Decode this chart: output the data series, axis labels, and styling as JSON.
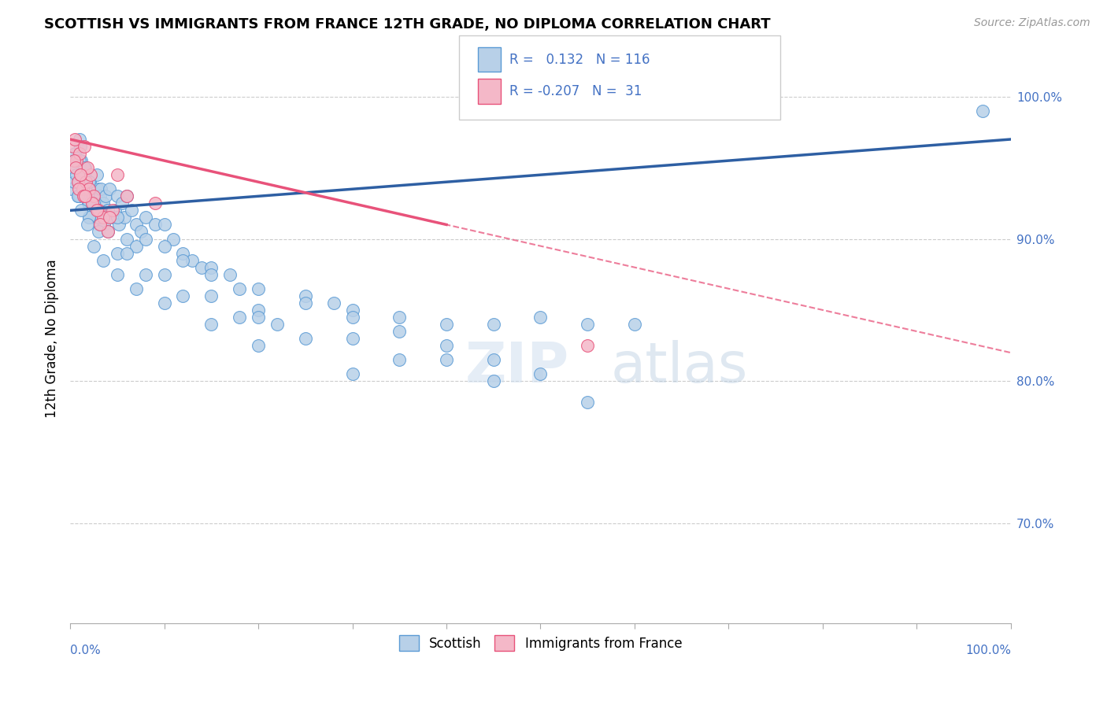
{
  "title": "SCOTTISH VS IMMIGRANTS FROM FRANCE 12TH GRADE, NO DIPLOMA CORRELATION CHART",
  "source": "Source: ZipAtlas.com",
  "ylabel": "12th Grade, No Diploma",
  "watermark_zip": "ZIP",
  "watermark_atlas": "atlas",
  "R_scottish": 0.132,
  "N_scottish": 116,
  "R_france": -0.207,
  "N_france": 31,
  "color_scottish": "#b8d0e8",
  "color_scottish_edge": "#5b9bd5",
  "color_france": "#f4b8c8",
  "color_france_edge": "#e8527a",
  "color_scottish_line": "#2e5fa3",
  "color_france_line": "#e8527a",
  "ylim": [
    63,
    103
  ],
  "xlim": [
    0,
    100
  ],
  "scottish_x": [
    0.2,
    0.3,
    0.4,
    0.5,
    0.6,
    0.7,
    0.8,
    0.9,
    1.0,
    1.1,
    1.2,
    1.3,
    1.4,
    1.5,
    1.6,
    1.7,
    1.8,
    1.9,
    2.0,
    2.1,
    2.2,
    2.3,
    2.4,
    2.5,
    2.6,
    2.7,
    2.8,
    2.9,
    3.0,
    3.1,
    3.2,
    3.3,
    3.5,
    3.6,
    3.8,
    4.0,
    4.2,
    4.5,
    4.8,
    5.0,
    5.2,
    5.5,
    5.8,
    6.0,
    6.5,
    7.0,
    7.5,
    8.0,
    9.0,
    10.0,
    11.0,
    12.0,
    13.0,
    14.0,
    15.0,
    17.0,
    18.0,
    20.0,
    22.0,
    25.0,
    28.0,
    30.0,
    35.0,
    40.0,
    45.0,
    50.0,
    55.0,
    60.0,
    0.5,
    1.0,
    1.5,
    2.0,
    2.5,
    3.0,
    4.0,
    5.0,
    6.0,
    7.0,
    8.0,
    10.0,
    12.0,
    15.0,
    20.0,
    25.0,
    30.0,
    35.0,
    40.0,
    45.0,
    50.0,
    2.0,
    3.0,
    5.0,
    8.0,
    12.0,
    18.0,
    25.0,
    35.0,
    45.0,
    55.0,
    1.0,
    2.0,
    4.0,
    6.0,
    10.0,
    15.0,
    20.0,
    30.0,
    40.0,
    0.8,
    1.2,
    1.8,
    2.5,
    3.5,
    5.0,
    7.0,
    10.0,
    15.0,
    20.0,
    30.0,
    97.0
  ],
  "scottish_y": [
    93.5,
    95.0,
    94.0,
    96.0,
    95.5,
    94.5,
    93.0,
    94.0,
    97.0,
    96.5,
    95.5,
    94.5,
    93.5,
    94.5,
    95.0,
    94.0,
    93.5,
    92.5,
    92.5,
    94.0,
    93.5,
    92.5,
    93.0,
    91.5,
    92.5,
    92.0,
    94.5,
    93.5,
    92.0,
    91.0,
    93.0,
    93.5,
    92.5,
    91.0,
    93.0,
    92.0,
    93.5,
    91.5,
    92.0,
    93.0,
    91.0,
    92.5,
    91.5,
    93.0,
    92.0,
    91.0,
    90.5,
    91.5,
    91.0,
    91.0,
    90.0,
    89.0,
    88.5,
    88.0,
    88.0,
    87.5,
    86.5,
    85.0,
    84.0,
    86.0,
    85.5,
    85.0,
    84.5,
    84.0,
    84.0,
    84.5,
    84.0,
    84.0,
    95.5,
    95.5,
    95.0,
    94.0,
    92.5,
    91.5,
    92.0,
    91.5,
    90.0,
    89.5,
    90.0,
    89.5,
    88.5,
    87.5,
    86.5,
    85.5,
    84.5,
    83.5,
    82.5,
    81.5,
    80.5,
    91.5,
    90.5,
    89.0,
    87.5,
    86.0,
    84.5,
    83.0,
    81.5,
    80.0,
    78.5,
    93.0,
    91.5,
    90.5,
    89.0,
    87.5,
    86.0,
    84.5,
    83.0,
    81.5,
    93.0,
    92.0,
    91.0,
    89.5,
    88.5,
    87.5,
    86.5,
    85.5,
    84.0,
    82.5,
    80.5,
    99.0
  ],
  "france_x": [
    0.3,
    0.5,
    0.7,
    0.8,
    1.0,
    1.2,
    1.3,
    1.5,
    1.7,
    2.0,
    2.2,
    2.5,
    3.0,
    3.5,
    4.0,
    5.0,
    0.4,
    0.9,
    1.4,
    1.8,
    2.3,
    3.2,
    4.5,
    0.6,
    1.1,
    1.6,
    2.8,
    4.2,
    6.0,
    9.0,
    55.0
  ],
  "france_y": [
    96.5,
    97.0,
    95.5,
    94.0,
    96.0,
    94.5,
    93.5,
    96.5,
    94.0,
    93.5,
    94.5,
    93.0,
    92.0,
    91.5,
    90.5,
    94.5,
    95.5,
    93.5,
    93.0,
    95.0,
    92.5,
    91.0,
    92.0,
    95.0,
    94.5,
    93.0,
    92.0,
    91.5,
    93.0,
    92.5,
    82.5
  ],
  "france_solid_max_x": 15.0
}
